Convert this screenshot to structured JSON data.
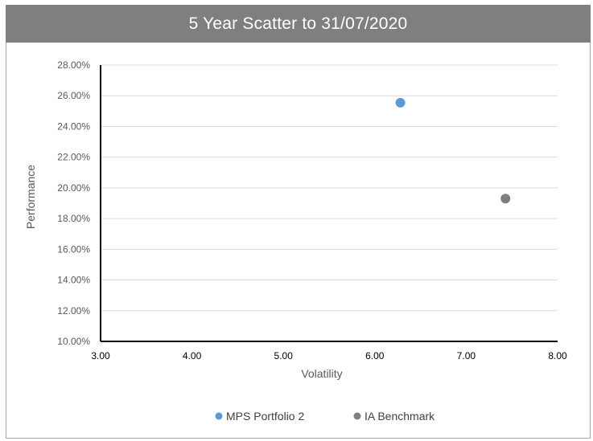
{
  "chart_data": {
    "type": "scatter",
    "title": "5 Year Scatter to 31/07/2020",
    "xlabel": "Volatility",
    "ylabel": "Performance",
    "xlim": [
      3.0,
      8.0
    ],
    "ylim": [
      10.0,
      28.0
    ],
    "x_ticks": [
      "3.00",
      "4.00",
      "5.00",
      "6.00",
      "7.00",
      "8.00"
    ],
    "y_ticks": [
      "10.00%",
      "12.00%",
      "14.00%",
      "16.00%",
      "18.00%",
      "20.00%",
      "22.00%",
      "24.00%",
      "26.00%",
      "28.00%"
    ],
    "grid": true,
    "legend_position": "bottom",
    "series": [
      {
        "name": "MPS Portfolio 2",
        "color": "#5b9bd5",
        "points": [
          {
            "x": 6.28,
            "y": 25.55
          }
        ]
      },
      {
        "name": "IA Benchmark",
        "color": "#7f7f7f",
        "points": [
          {
            "x": 7.43,
            "y": 19.3
          }
        ]
      }
    ]
  }
}
